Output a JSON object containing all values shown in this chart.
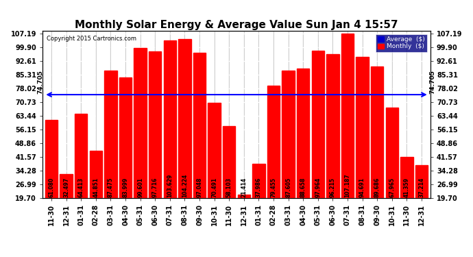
{
  "title": "Monthly Solar Energy & Average Value Sun Jan 4 15:57",
  "copyright": "Copyright 2015 Cartronics.com",
  "categories": [
    "11-30",
    "12-31",
    "01-31",
    "02-28",
    "03-31",
    "04-30",
    "05-31",
    "06-30",
    "07-31",
    "08-31",
    "09-30",
    "10-31",
    "11-30",
    "12-31",
    "01-31",
    "02-28",
    "03-31",
    "04-30",
    "05-31",
    "06-30",
    "07-31",
    "08-31",
    "09-30",
    "10-31",
    "11-30",
    "12-31"
  ],
  "values": [
    61.08,
    32.497,
    64.413,
    44.851,
    87.475,
    83.999,
    99.601,
    97.716,
    103.629,
    104.224,
    97.048,
    70.491,
    58.103,
    21.414,
    37.986,
    79.455,
    87.605,
    88.658,
    97.964,
    96.215,
    107.187,
    94.691,
    89.686,
    67.965,
    41.359,
    37.214
  ],
  "average": 74.705,
  "bar_color": "#ff0000",
  "average_line_color": "#0000ff",
  "background_color": "#ffffff",
  "grid_color": "#b0b0b0",
  "yticks": [
    19.7,
    26.99,
    34.28,
    41.57,
    48.86,
    56.15,
    63.44,
    70.73,
    78.02,
    85.31,
    92.61,
    99.9,
    107.19
  ],
  "ymin": 19.7,
  "ymax": 107.19,
  "avg_label": "74.705",
  "legend_avg_color": "#0000cc",
  "legend_monthly_color": "#ff0000",
  "title_fontsize": 11,
  "bar_label_fontsize": 5.5,
  "tick_fontsize": 7
}
